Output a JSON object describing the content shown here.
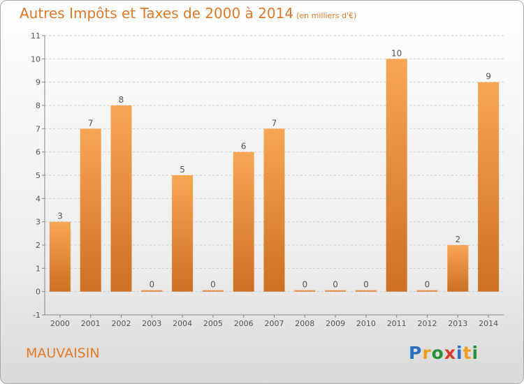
{
  "title": "Autres Impôts et Taxes de 2000 à 2014",
  "unit_note": "(en milliers d'€)",
  "commune": "MAUVAISIN",
  "logo": {
    "letters": [
      "P",
      "r",
      "o",
      "x",
      "i",
      "t",
      "i"
    ],
    "colors": [
      "#2a6fc0",
      "#f0a020",
      "#2a8f3a",
      "#d93a2a",
      "#2a6fc0",
      "#f0a020",
      "#2a8f3a"
    ]
  },
  "colors": {
    "bar_top": "#f8a654",
    "bar_bottom": "#cd7024",
    "text": "#555555",
    "grid": "#cccccc"
  },
  "chart_data": {
    "type": "bar",
    "categories": [
      "2000",
      "2001",
      "2002",
      "2003",
      "2004",
      "2005",
      "2006",
      "2007",
      "2008",
      "2009",
      "2010",
      "2011",
      "2012",
      "2013",
      "2014"
    ],
    "values": [
      3,
      7,
      8,
      0,
      5,
      0,
      6,
      7,
      0,
      0,
      0,
      10,
      0,
      2,
      9
    ],
    "ylim": [
      -1,
      11
    ],
    "yticks": [
      -1,
      0,
      1,
      2,
      3,
      4,
      5,
      6,
      7,
      8,
      9,
      10,
      11
    ],
    "grid": "horizontal dashed",
    "legend": "none"
  }
}
